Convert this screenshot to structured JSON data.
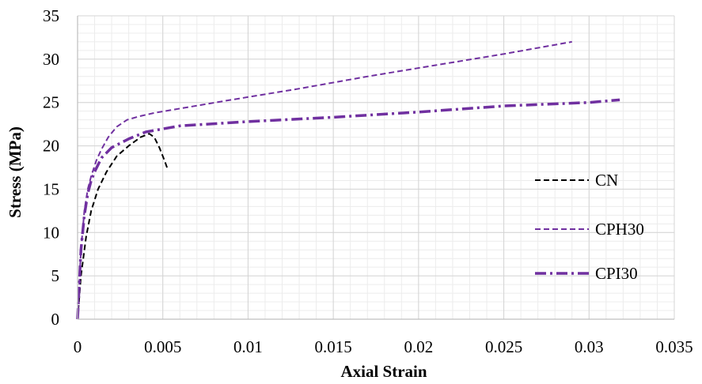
{
  "chart_data": {
    "type": "line",
    "title": "",
    "xlabel": "Axial Strain",
    "ylabel": "Stress (MPa)",
    "xlim": [
      0,
      0.035
    ],
    "ylim": [
      0,
      35
    ],
    "x_ticks": [
      "0",
      "0.005",
      "0.01",
      "0.015",
      "0.02",
      "0.025",
      "0.03",
      "0.035"
    ],
    "y_ticks": [
      "0",
      "5",
      "10",
      "15",
      "20",
      "25",
      "30",
      "35"
    ],
    "grid": "major and minor",
    "legend_position": "right",
    "series": [
      {
        "name": "CN",
        "color": "#000000",
        "dash": "dashed",
        "x": [
          0,
          0.0002,
          0.0005,
          0.0008,
          0.0012,
          0.0017,
          0.0023,
          0.003,
          0.0037,
          0.0042,
          0.0045,
          0.0048,
          0.0051,
          0.0053
        ],
        "y": [
          0,
          5,
          9.5,
          12.5,
          15,
          17,
          18.8,
          20,
          21,
          21.4,
          21,
          19.8,
          18.3,
          17.2
        ]
      },
      {
        "name": "CPH30",
        "color": "#7030A0",
        "dash": "dashed",
        "x": [
          0,
          0.0002,
          0.0004,
          0.0006,
          0.0008,
          0.0011,
          0.0014,
          0.0018,
          0.0023,
          0.0029,
          0.0036,
          0.0045,
          0.006,
          0.009,
          0.013,
          0.017,
          0.021,
          0.025,
          0.029
        ],
        "y": [
          0,
          8,
          12.5,
          15,
          16.5,
          18.3,
          19.6,
          21,
          22.2,
          23,
          23.4,
          23.8,
          24.3,
          25.3,
          26.6,
          28,
          29.3,
          30.6,
          32
        ]
      },
      {
        "name": "CPI30",
        "color": "#7030A0",
        "dash": "dash-dot",
        "x": [
          0,
          0.0002,
          0.0004,
          0.0006,
          0.0008,
          0.001,
          0.0014,
          0.002,
          0.003,
          0.004,
          0.006,
          0.01,
          0.015,
          0.02,
          0.025,
          0.03,
          0.0318
        ],
        "y": [
          0,
          8,
          12,
          14.5,
          16,
          17,
          18.6,
          19.8,
          20.8,
          21.6,
          22.3,
          22.8,
          23.3,
          23.9,
          24.6,
          25,
          25.3
        ]
      }
    ]
  }
}
